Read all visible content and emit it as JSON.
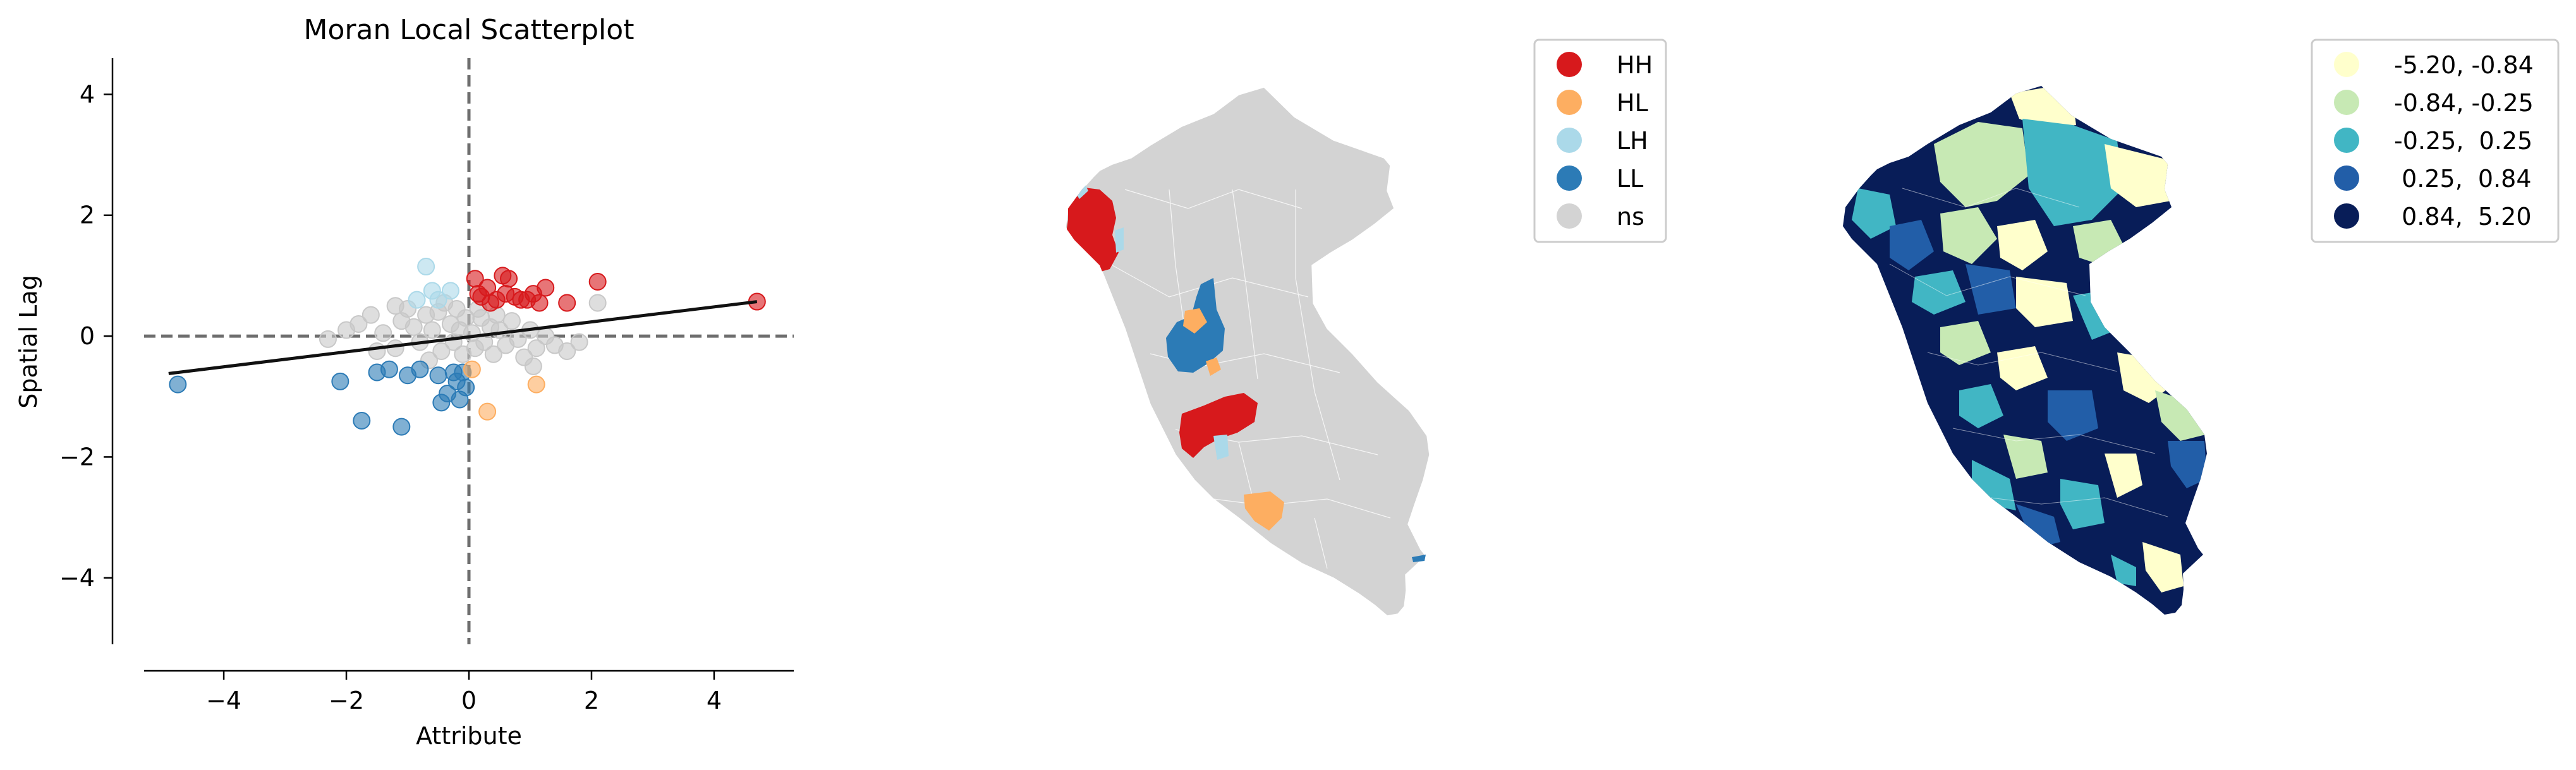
{
  "chart_data": [
    {
      "type": "scatter",
      "title": "Moran Local Scatterplot",
      "xlabel": "Attribute",
      "ylabel": "Spatial Lag",
      "xlim": [
        -5.3,
        5.3
      ],
      "ylim": [
        -5.1,
        4.6
      ],
      "xticks": [
        -4,
        -2,
        0,
        2,
        4
      ],
      "yticks": [
        -4,
        -2,
        0,
        2,
        4
      ],
      "quadrant_lines": {
        "x": 0,
        "y": 0,
        "style": "dashed",
        "color": "#6e6e6e"
      },
      "fit_line": {
        "x": [
          -4.9,
          4.7
        ],
        "y": [
          -0.62,
          0.57
        ],
        "color": "#111111"
      },
      "grid": false,
      "series": [
        {
          "label": "HH",
          "color": "#d7191c",
          "points": [
            [
              0.1,
              0.95
            ],
            [
              0.15,
              0.7
            ],
            [
              0.3,
              0.8
            ],
            [
              0.45,
              0.6
            ],
            [
              0.55,
              1.0
            ],
            [
              0.6,
              0.7
            ],
            [
              0.65,
              0.95
            ],
            [
              0.75,
              0.65
            ],
            [
              0.85,
              0.6
            ],
            [
              0.95,
              0.6
            ],
            [
              1.05,
              0.7
            ],
            [
              1.15,
              0.55
            ],
            [
              1.25,
              0.8
            ],
            [
              1.6,
              0.55
            ],
            [
              2.1,
              0.9
            ],
            [
              4.7,
              0.57
            ],
            [
              0.35,
              0.55
            ],
            [
              0.2,
              0.65
            ]
          ]
        },
        {
          "label": "HL",
          "color": "#fdae61",
          "points": [
            [
              0.3,
              -1.25
            ],
            [
              1.1,
              -0.8
            ],
            [
              0.05,
              -0.55
            ]
          ]
        },
        {
          "label": "LH",
          "color": "#abd9e9",
          "points": [
            [
              -0.7,
              1.15
            ],
            [
              -0.6,
              0.75
            ],
            [
              -0.85,
              0.6
            ],
            [
              -0.3,
              0.75
            ],
            [
              -0.5,
              0.6
            ]
          ]
        },
        {
          "label": "LL",
          "color": "#2c7bb6",
          "points": [
            [
              -4.75,
              -0.8
            ],
            [
              -2.1,
              -0.75
            ],
            [
              -1.75,
              -1.4
            ],
            [
              -1.1,
              -1.5
            ],
            [
              -1.5,
              -0.6
            ],
            [
              -1.3,
              -0.55
            ],
            [
              -1.0,
              -0.65
            ],
            [
              -0.8,
              -0.55
            ],
            [
              -0.5,
              -0.65
            ],
            [
              -0.45,
              -1.1
            ],
            [
              -0.35,
              -0.95
            ],
            [
              -0.2,
              -0.75
            ],
            [
              -0.15,
              -1.05
            ],
            [
              -0.05,
              -0.85
            ],
            [
              -0.25,
              -0.6
            ],
            [
              -0.1,
              -0.6
            ]
          ]
        },
        {
          "label": "ns",
          "color": "#c8c8c8",
          "points": [
            [
              -2.3,
              -0.05
            ],
            [
              -2.0,
              0.1
            ],
            [
              -1.8,
              0.2
            ],
            [
              -1.6,
              0.35
            ],
            [
              -1.4,
              0.05
            ],
            [
              -1.2,
              -0.2
            ],
            [
              -1.1,
              0.25
            ],
            [
              -1.0,
              0.45
            ],
            [
              -0.9,
              0.15
            ],
            [
              -0.8,
              -0.1
            ],
            [
              -0.7,
              0.35
            ],
            [
              -0.6,
              0.1
            ],
            [
              -0.5,
              0.4
            ],
            [
              -0.45,
              -0.25
            ],
            [
              -0.4,
              0.55
            ],
            [
              -0.3,
              0.2
            ],
            [
              -0.25,
              -0.1
            ],
            [
              -0.2,
              0.45
            ],
            [
              -0.15,
              0.1
            ],
            [
              -0.1,
              -0.3
            ],
            [
              -0.05,
              0.3
            ],
            [
              0.05,
              0.05
            ],
            [
              0.1,
              -0.2
            ],
            [
              0.2,
              0.3
            ],
            [
              0.25,
              -0.1
            ],
            [
              0.35,
              0.15
            ],
            [
              0.4,
              -0.3
            ],
            [
              0.5,
              0.1
            ],
            [
              0.6,
              -0.15
            ],
            [
              0.7,
              0.25
            ],
            [
              0.8,
              -0.05
            ],
            [
              0.9,
              -0.35
            ],
            [
              1.0,
              0.1
            ],
            [
              1.1,
              -0.2
            ],
            [
              1.25,
              0.0
            ],
            [
              1.4,
              -0.15
            ],
            [
              1.6,
              -0.25
            ],
            [
              1.8,
              -0.1
            ],
            [
              2.1,
              0.55
            ],
            [
              -1.5,
              -0.25
            ],
            [
              -0.65,
              -0.4
            ],
            [
              0.45,
              0.35
            ],
            [
              1.05,
              -0.5
            ],
            [
              -1.2,
              0.5
            ],
            [
              0.15,
              0.45
            ]
          ]
        }
      ]
    },
    {
      "type": "map",
      "legend": [
        {
          "label": "HH",
          "color": "#d7191c"
        },
        {
          "label": "HL",
          "color": "#fdae61"
        },
        {
          "label": "LH",
          "color": "#abd9e9"
        },
        {
          "label": "LL",
          "color": "#2c7bb6"
        },
        {
          "label": "ns",
          "color": "#d3d3d3"
        }
      ]
    },
    {
      "type": "map",
      "legend": [
        {
          "label": "-5.20, -0.84",
          "color": "#ffffcc"
        },
        {
          "label": "-0.84, -0.25",
          "color": "#c7e9b4"
        },
        {
          "label": "-0.25,  0.25",
          "color": "#41b6c4"
        },
        {
          "label": " 0.25,  0.84",
          "color": "#225ea8"
        },
        {
          "label": " 0.84,  5.20",
          "color": "#081d58"
        }
      ]
    }
  ]
}
